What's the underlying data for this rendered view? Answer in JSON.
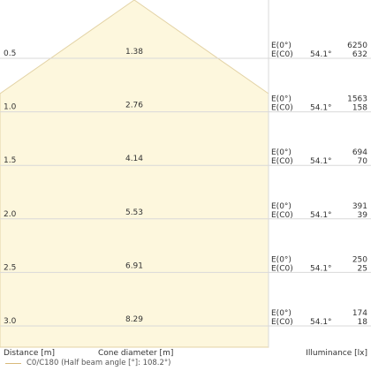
{
  "chart_data": {
    "type": "cone-diagram",
    "cone_half_angle_deg": 54.1,
    "beam_label": "C0/C180 (Half beam angle [°]: 108.2°)",
    "xlabel_left": "Distance [m]",
    "xlabel_center": "Cone diameter [m]",
    "xlabel_right": "Illuminance [lx]",
    "label_e0": "E(0°)",
    "label_ec0": "E(C0)",
    "angle_label": "54.1°",
    "rows": [
      {
        "distance": "0.5",
        "diameter": "1.38",
        "e0": "6250",
        "ec0": "632"
      },
      {
        "distance": "1.0",
        "diameter": "2.76",
        "e0": "1563",
        "ec0": "158"
      },
      {
        "distance": "1.5",
        "diameter": "4.14",
        "e0": "694",
        "ec0": "70"
      },
      {
        "distance": "2.0",
        "diameter": "5.53",
        "e0": "391",
        "ec0": "39"
      },
      {
        "distance": "2.5",
        "diameter": "6.91",
        "e0": "250",
        "ec0": "25"
      },
      {
        "distance": "3.0",
        "diameter": "8.29",
        "e0": "174",
        "ec0": "18"
      }
    ],
    "colors": {
      "cone_fill": "#fdf7dd",
      "cone_edge": "#e3d3a6",
      "grid": "#d9d9d9",
      "text": "#333333",
      "legend_line": "#d9b97a"
    }
  }
}
